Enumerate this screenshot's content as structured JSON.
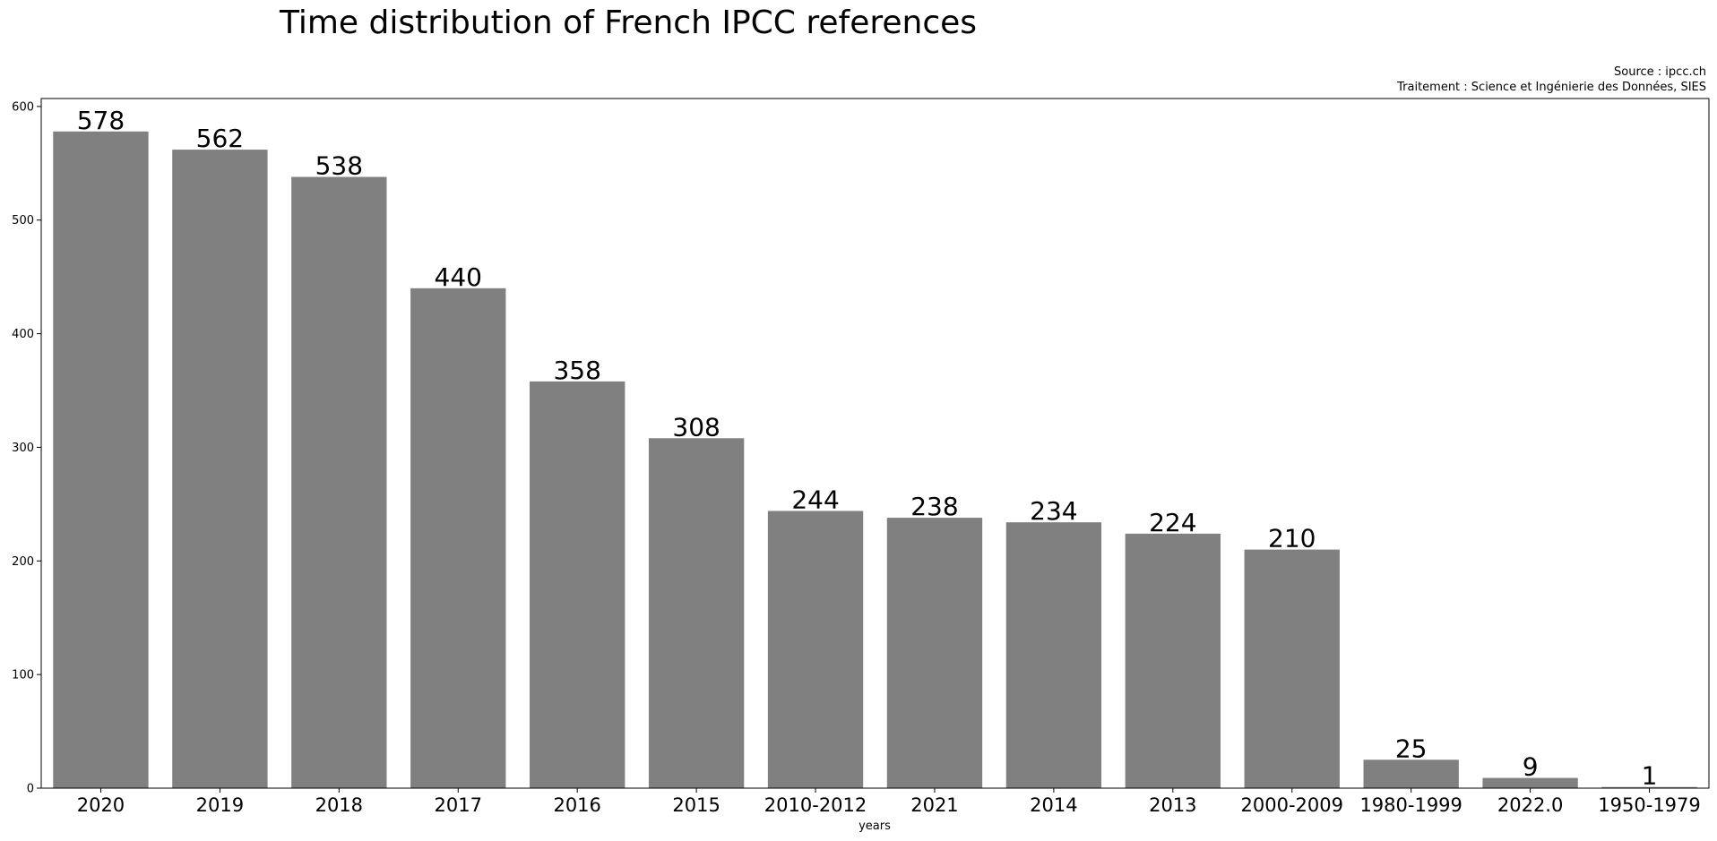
{
  "chart_data": {
    "type": "bar",
    "title": "Time distribution of French IPCC references",
    "source_lines": [
      "Source : ipcc.ch",
      "Traitement : Science et Ingénierie des Données, SIES"
    ],
    "categories": [
      "2020",
      "2019",
      "2018",
      "2017",
      "2016",
      "2015",
      "2010-2012",
      "2021",
      "2014",
      "2013",
      "2000-2009",
      "1980-1999",
      "2022.0",
      "1950-1979"
    ],
    "values": [
      578,
      562,
      538,
      440,
      358,
      308,
      244,
      238,
      234,
      224,
      210,
      25,
      9,
      1
    ],
    "data_labels": [
      "578",
      "562",
      "538",
      "440",
      "358",
      "308",
      "244",
      "238",
      "234",
      "224",
      "210",
      "25",
      "9",
      "1"
    ],
    "xlabel": "years",
    "ylabel": "",
    "ylim": [
      0,
      607
    ],
    "yticks": [
      0,
      100,
      200,
      300,
      400,
      500,
      600
    ],
    "grid": false,
    "legend": "none",
    "bar_color": "#808080"
  }
}
